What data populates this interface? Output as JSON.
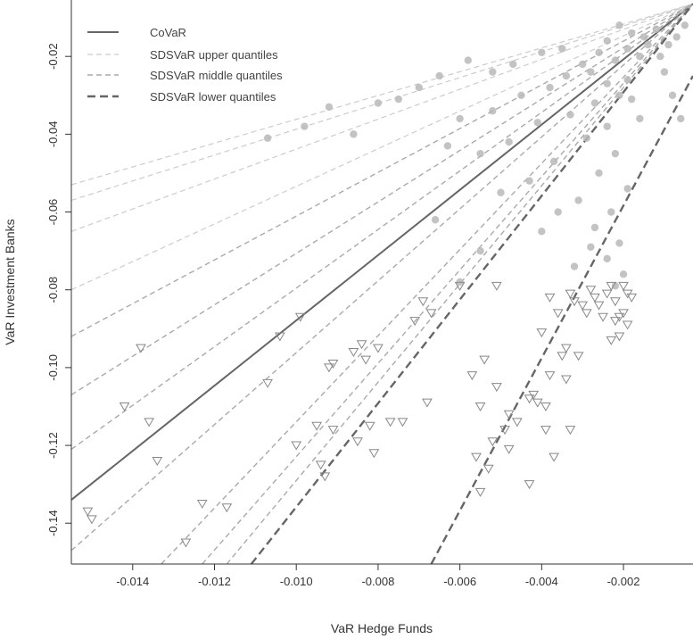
{
  "chart_data": {
    "type": "scatter",
    "xlabel": "VaR Hedge Funds",
    "ylabel": "VaR Investment Banks",
    "xlim": [
      -0.0155,
      -0.0003
    ],
    "ylim": [
      -0.1505,
      -0.0055
    ],
    "x_ticks": [
      -0.014,
      -0.012,
      -0.01,
      -0.008,
      -0.006,
      -0.004,
      -0.002
    ],
    "x_tick_labels": [
      "-0.014",
      "-0.012",
      "-0.010",
      "-0.008",
      "-0.006",
      "-0.004",
      "-0.002"
    ],
    "y_ticks": [
      -0.02,
      -0.04,
      -0.06,
      -0.08,
      -0.1,
      -0.12,
      -0.14
    ],
    "y_tick_labels": [
      "-0.02",
      "-0.04",
      "-0.06",
      "-0.08",
      "-0.10",
      "-0.12",
      "-0.14"
    ],
    "grid": false,
    "legend": {
      "position": "top-left",
      "entries": [
        {
          "label": "CoVaR",
          "style": "solid",
          "color": "#666666"
        },
        {
          "label": "SDSVaR upper quantiles",
          "style": "dashed-light",
          "color": "#cccccc"
        },
        {
          "label": "SDSVaR middle quantiles",
          "style": "dashed-medium",
          "color": "#aaaaaa"
        },
        {
          "label": "SDSVaR lower quantiles",
          "style": "dashed-heavy",
          "color": "#666666"
        }
      ]
    },
    "lines": [
      {
        "group": "CoVaR",
        "points": [
          [
            -0.0155,
            -0.134
          ],
          [
            -0.0003,
            -0.0065
          ]
        ]
      },
      {
        "group": "SDSVaR upper quantiles",
        "points": [
          [
            -0.0155,
            -0.053
          ],
          [
            -0.0003,
            -0.0065
          ]
        ]
      },
      {
        "group": "SDSVaR upper quantiles",
        "points": [
          [
            -0.0155,
            -0.057
          ],
          [
            -0.0003,
            -0.0065
          ]
        ]
      },
      {
        "group": "SDSVaR upper quantiles",
        "points": [
          [
            -0.0155,
            -0.065
          ],
          [
            -0.0003,
            -0.0065
          ]
        ]
      },
      {
        "group": "SDSVaR upper quantiles",
        "points": [
          [
            -0.0155,
            -0.08
          ],
          [
            -0.0003,
            -0.0065
          ]
        ]
      },
      {
        "group": "SDSVaR middle quantiles",
        "points": [
          [
            -0.0155,
            -0.092
          ],
          [
            -0.0003,
            -0.0065
          ]
        ]
      },
      {
        "group": "SDSVaR middle quantiles",
        "points": [
          [
            -0.0155,
            -0.107
          ],
          [
            -0.0003,
            -0.0065
          ]
        ]
      },
      {
        "group": "SDSVaR middle quantiles",
        "points": [
          [
            -0.0155,
            -0.121
          ],
          [
            -0.0003,
            -0.0065
          ]
        ]
      },
      {
        "group": "SDSVaR middle quantiles",
        "points": [
          [
            -0.0155,
            -0.147
          ],
          [
            -0.0003,
            -0.0065
          ]
        ]
      },
      {
        "group": "SDSVaR middle quantiles",
        "points": [
          [
            -0.0133,
            -0.1505
          ],
          [
            -0.0003,
            -0.0065
          ]
        ]
      },
      {
        "group": "SDSVaR middle quantiles",
        "points": [
          [
            -0.0123,
            -0.1505
          ],
          [
            -0.0003,
            -0.0065
          ]
        ]
      },
      {
        "group": "SDSVaR middle quantiles",
        "points": [
          [
            -0.0117,
            -0.1505
          ],
          [
            -0.0003,
            -0.0065
          ]
        ]
      },
      {
        "group": "SDSVaR lower quantiles",
        "points": [
          [
            -0.0111,
            -0.1505
          ],
          [
            -0.0003,
            -0.0065
          ]
        ]
      },
      {
        "group": "SDSVaR lower quantiles",
        "points": [
          [
            -0.0067,
            -0.1505
          ],
          [
            -0.0003,
            -0.025
          ]
        ]
      }
    ],
    "points_circle": [
      [
        -0.0021,
        -0.012
      ],
      [
        -0.0018,
        -0.014
      ],
      [
        -0.0015,
        -0.015
      ],
      [
        -0.0024,
        -0.016
      ],
      [
        -0.0012,
        -0.013
      ],
      [
        -0.0019,
        -0.018
      ],
      [
        -0.0026,
        -0.019
      ],
      [
        -0.0016,
        -0.02
      ],
      [
        -0.0022,
        -0.021
      ],
      [
        -0.003,
        -0.022
      ],
      [
        -0.0014,
        -0.017
      ],
      [
        -0.0028,
        -0.024
      ],
      [
        -0.0034,
        -0.025
      ],
      [
        -0.0019,
        -0.026
      ],
      [
        -0.0024,
        -0.027
      ],
      [
        -0.0038,
        -0.028
      ],
      [
        -0.0021,
        -0.03
      ],
      [
        -0.0027,
        -0.032
      ],
      [
        -0.0045,
        -0.03
      ],
      [
        -0.0018,
        -0.031
      ],
      [
        -0.0033,
        -0.035
      ],
      [
        -0.0041,
        -0.037
      ],
      [
        -0.0052,
        -0.034
      ],
      [
        -0.0024,
        -0.038
      ],
      [
        -0.0016,
        -0.036
      ],
      [
        -0.006,
        -0.036
      ],
      [
        -0.0029,
        -0.041
      ],
      [
        -0.0048,
        -0.042
      ],
      [
        -0.0022,
        -0.045
      ],
      [
        -0.0037,
        -0.047
      ],
      [
        -0.0055,
        -0.045
      ],
      [
        -0.0026,
        -0.05
      ],
      [
        -0.0043,
        -0.052
      ],
      [
        -0.0019,
        -0.054
      ],
      [
        -0.0031,
        -0.057
      ],
      [
        -0.0023,
        -0.06
      ],
      [
        -0.0027,
        -0.064
      ],
      [
        -0.0021,
        -0.068
      ],
      [
        -0.0024,
        -0.072
      ],
      [
        -0.002,
        -0.076
      ],
      [
        -0.0022,
        -0.079
      ],
      [
        -0.008,
        -0.032
      ],
      [
        -0.0086,
        -0.04
      ],
      [
        -0.0107,
        -0.041
      ],
      [
        -0.0098,
        -0.038
      ],
      [
        -0.0092,
        -0.033
      ],
      [
        -0.007,
        -0.028
      ],
      [
        -0.0065,
        -0.025
      ],
      [
        -0.0058,
        -0.021
      ],
      [
        -0.0075,
        -0.031
      ],
      [
        -0.0063,
        -0.043
      ],
      [
        -0.0066,
        -0.062
      ],
      [
        -0.006,
        -0.078
      ],
      [
        -0.0055,
        -0.07
      ],
      [
        -0.005,
        -0.055
      ],
      [
        -0.0011,
        -0.02
      ],
      [
        -0.0009,
        -0.017
      ],
      [
        -0.001,
        -0.024
      ],
      [
        -0.0007,
        -0.015
      ],
      [
        -0.0008,
        -0.03
      ],
      [
        -0.0006,
        -0.036
      ],
      [
        -0.0005,
        -0.012
      ],
      [
        -0.0035,
        -0.018
      ],
      [
        -0.004,
        -0.019
      ],
      [
        -0.0047,
        -0.022
      ],
      [
        -0.0052,
        -0.024
      ],
      [
        -0.0036,
        -0.06
      ],
      [
        -0.004,
        -0.065
      ],
      [
        -0.0028,
        -0.069
      ],
      [
        -0.0032,
        -0.074
      ]
    ],
    "points_triangle": [
      [
        -0.0151,
        -0.137
      ],
      [
        -0.015,
        -0.139
      ],
      [
        -0.0142,
        -0.11
      ],
      [
        -0.0138,
        -0.095
      ],
      [
        -0.0136,
        -0.114
      ],
      [
        -0.0134,
        -0.124
      ],
      [
        -0.0127,
        -0.145
      ],
      [
        -0.0123,
        -0.135
      ],
      [
        -0.0117,
        -0.136
      ],
      [
        -0.0107,
        -0.104
      ],
      [
        -0.0104,
        -0.092
      ],
      [
        -0.01,
        -0.12
      ],
      [
        -0.0099,
        -0.087
      ],
      [
        -0.0095,
        -0.115
      ],
      [
        -0.0094,
        -0.125
      ],
      [
        -0.0093,
        -0.128
      ],
      [
        -0.0092,
        -0.1
      ],
      [
        -0.0091,
        -0.099
      ],
      [
        -0.0091,
        -0.116
      ],
      [
        -0.0086,
        -0.096
      ],
      [
        -0.0085,
        -0.119
      ],
      [
        -0.0084,
        -0.094
      ],
      [
        -0.0083,
        -0.098
      ],
      [
        -0.0081,
        -0.122
      ],
      [
        -0.008,
        -0.095
      ],
      [
        -0.0082,
        -0.115
      ],
      [
        -0.0077,
        -0.114
      ],
      [
        -0.0074,
        -0.114
      ],
      [
        -0.0071,
        -0.088
      ],
      [
        -0.0069,
        -0.083
      ],
      [
        -0.0068,
        -0.109
      ],
      [
        -0.0067,
        -0.086
      ],
      [
        -0.006,
        -0.079
      ],
      [
        -0.0057,
        -0.102
      ],
      [
        -0.0056,
        -0.123
      ],
      [
        -0.0055,
        -0.132
      ],
      [
        -0.0055,
        -0.11
      ],
      [
        -0.0054,
        -0.098
      ],
      [
        -0.0053,
        -0.126
      ],
      [
        -0.0052,
        -0.119
      ],
      [
        -0.0051,
        -0.105
      ],
      [
        -0.0051,
        -0.079
      ],
      [
        -0.0049,
        -0.116
      ],
      [
        -0.0048,
        -0.112
      ],
      [
        -0.0048,
        -0.121
      ],
      [
        -0.0046,
        -0.114
      ],
      [
        -0.0043,
        -0.108
      ],
      [
        -0.0043,
        -0.13
      ],
      [
        -0.0042,
        -0.107
      ],
      [
        -0.0041,
        -0.109
      ],
      [
        -0.004,
        -0.091
      ],
      [
        -0.0039,
        -0.11
      ],
      [
        -0.0039,
        -0.116
      ],
      [
        -0.0038,
        -0.082
      ],
      [
        -0.0038,
        -0.102
      ],
      [
        -0.0037,
        -0.123
      ],
      [
        -0.0036,
        -0.086
      ],
      [
        -0.0035,
        -0.097
      ],
      [
        -0.0034,
        -0.103
      ],
      [
        -0.0034,
        -0.095
      ],
      [
        -0.0033,
        -0.081
      ],
      [
        -0.0033,
        -0.116
      ],
      [
        -0.0032,
        -0.083
      ],
      [
        -0.0031,
        -0.097
      ],
      [
        -0.003,
        -0.084
      ],
      [
        -0.0029,
        -0.086
      ],
      [
        -0.0028,
        -0.08
      ],
      [
        -0.0027,
        -0.082
      ],
      [
        -0.0026,
        -0.084
      ],
      [
        -0.0025,
        -0.087
      ],
      [
        -0.0024,
        -0.081
      ],
      [
        -0.0023,
        -0.079
      ],
      [
        -0.0023,
        -0.093
      ],
      [
        -0.0022,
        -0.088
      ],
      [
        -0.0022,
        -0.083
      ],
      [
        -0.0021,
        -0.087
      ],
      [
        -0.0021,
        -0.092
      ],
      [
        -0.002,
        -0.079
      ],
      [
        -0.002,
        -0.086
      ],
      [
        -0.0019,
        -0.081
      ],
      [
        -0.0019,
        -0.089
      ],
      [
        -0.0018,
        -0.082
      ]
    ]
  }
}
